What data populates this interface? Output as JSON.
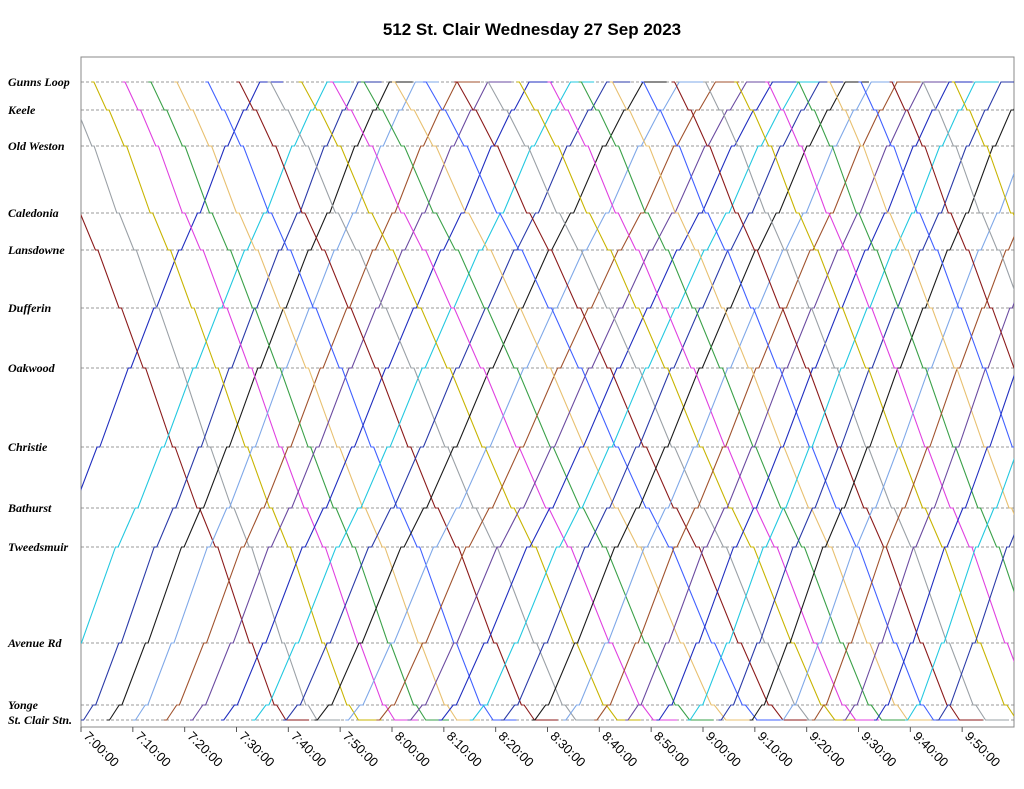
{
  "chart_data": {
    "type": "line",
    "title": "512 St. Clair Wednesday 27 Sep 2023",
    "xlabel": "",
    "ylabel": "",
    "x_ticks": [
      "7:00:00",
      "7:10:00",
      "7:20:00",
      "7:30:00",
      "7:40:00",
      "7:50:00",
      "8:00:00",
      "8:10:00",
      "8:20:00",
      "8:30:00",
      "8:40:00",
      "8:50:00",
      "9:00:00",
      "9:10:00",
      "9:20:00",
      "9:30:00",
      "9:40:00",
      "9:50:00"
    ],
    "x_range": [
      "7:00:00",
      "10:00:00"
    ],
    "stops": [
      {
        "name": "Gunns Loop"
      },
      {
        "name": "Keele"
      },
      {
        "name": "Old Weston"
      },
      {
        "name": "Caledonia"
      },
      {
        "name": "Lansdowne"
      },
      {
        "name": "Dufferin"
      },
      {
        "name": "Oakwood"
      },
      {
        "name": "Christie"
      },
      {
        "name": "Bathurst"
      },
      {
        "name": "Tweedsmuir"
      },
      {
        "name": "Avenue Rd"
      },
      {
        "name": "Yonge"
      },
      {
        "name": "St. Clair Stn."
      }
    ],
    "grid": "horizontal dashed at stops",
    "colors": [
      "#1f2dbf",
      "#8b1a1a",
      "#22c8e0",
      "#9aa0a6",
      "#2a3aa8",
      "#c8b400",
      "#1a1a1a",
      "#e040e0",
      "#7fa8e8",
      "#3aa048",
      "#a0522d",
      "#e8c070",
      "#6a4aa0",
      "#4060ff"
    ],
    "trips": [
      {
        "dir": "W",
        "start": "6:40:00",
        "duration_min": 55,
        "color_index": 0
      },
      {
        "dir": "E",
        "start": "6:48:00",
        "duration_min": 52,
        "color_index": 1
      },
      {
        "dir": "W",
        "start": "6:52:00",
        "duration_min": 56,
        "color_index": 2
      },
      {
        "dir": "E",
        "start": "6:56:00",
        "duration_min": 50,
        "color_index": 3
      },
      {
        "dir": "W",
        "start": "7:00:00",
        "duration_min": 54,
        "color_index": 4
      },
      {
        "dir": "E",
        "start": "7:02:00",
        "duration_min": 52,
        "color_index": 5
      },
      {
        "dir": "W",
        "start": "7:05:00",
        "duration_min": 55,
        "color_index": 6
      },
      {
        "dir": "E",
        "start": "7:08:00",
        "duration_min": 53,
        "color_index": 7
      },
      {
        "dir": "W",
        "start": "7:10:00",
        "duration_min": 55,
        "color_index": 8
      },
      {
        "dir": "E",
        "start": "7:13:00",
        "duration_min": 54,
        "color_index": 9
      },
      {
        "dir": "W",
        "start": "7:16:00",
        "duration_min": 57,
        "color_index": 10
      },
      {
        "dir": "E",
        "start": "7:18:00",
        "duration_min": 55,
        "color_index": 11
      },
      {
        "dir": "W",
        "start": "7:21:00",
        "duration_min": 58,
        "color_index": 12
      },
      {
        "dir": "E",
        "start": "7:24:00",
        "duration_min": 56,
        "color_index": 13
      },
      {
        "dir": "W",
        "start": "7:27:00",
        "duration_min": 60,
        "color_index": 0
      },
      {
        "dir": "E",
        "start": "7:30:00",
        "duration_min": 58,
        "color_index": 1
      },
      {
        "dir": "W",
        "start": "7:33:00",
        "duration_min": 62,
        "color_index": 2
      },
      {
        "dir": "E",
        "start": "7:36:00",
        "duration_min": 60,
        "color_index": 3
      },
      {
        "dir": "W",
        "start": "7:39:00",
        "duration_min": 63,
        "color_index": 4
      },
      {
        "dir": "E",
        "start": "7:42:00",
        "duration_min": 62,
        "color_index": 5
      },
      {
        "dir": "W",
        "start": "7:45:00",
        "duration_min": 64,
        "color_index": 6
      },
      {
        "dir": "E",
        "start": "7:48:00",
        "duration_min": 63,
        "color_index": 7
      },
      {
        "dir": "W",
        "start": "7:51:00",
        "duration_min": 65,
        "color_index": 8
      },
      {
        "dir": "E",
        "start": "7:54:00",
        "duration_min": 64,
        "color_index": 9
      },
      {
        "dir": "W",
        "start": "7:57:00",
        "duration_min": 66,
        "color_index": 10
      },
      {
        "dir": "E",
        "start": "8:00:00",
        "duration_min": 65,
        "color_index": 11
      },
      {
        "dir": "W",
        "start": "8:03:00",
        "duration_min": 66,
        "color_index": 12
      },
      {
        "dir": "E",
        "start": "8:06:00",
        "duration_min": 65,
        "color_index": 13
      },
      {
        "dir": "W",
        "start": "8:09:00",
        "duration_min": 65,
        "color_index": 0
      },
      {
        "dir": "E",
        "start": "8:12:00",
        "duration_min": 64,
        "color_index": 1
      },
      {
        "dir": "W",
        "start": "8:15:00",
        "duration_min": 64,
        "color_index": 2
      },
      {
        "dir": "E",
        "start": "8:18:00",
        "duration_min": 63,
        "color_index": 3
      },
      {
        "dir": "W",
        "start": "8:21:00",
        "duration_min": 62,
        "color_index": 4
      },
      {
        "dir": "E",
        "start": "8:24:00",
        "duration_min": 62,
        "color_index": 5
      },
      {
        "dir": "W",
        "start": "8:27:00",
        "duration_min": 61,
        "color_index": 6
      },
      {
        "dir": "E",
        "start": "8:30:00",
        "duration_min": 60,
        "color_index": 7
      },
      {
        "dir": "W",
        "start": "8:33:00",
        "duration_min": 60,
        "color_index": 8
      },
      {
        "dir": "E",
        "start": "8:36:00",
        "duration_min": 59,
        "color_index": 9
      },
      {
        "dir": "W",
        "start": "8:39:00",
        "duration_min": 59,
        "color_index": 10
      },
      {
        "dir": "E",
        "start": "8:42:00",
        "duration_min": 58,
        "color_index": 11
      },
      {
        "dir": "W",
        "start": "8:45:00",
        "duration_min": 58,
        "color_index": 12
      },
      {
        "dir": "E",
        "start": "8:48:00",
        "duration_min": 57,
        "color_index": 13
      },
      {
        "dir": "W",
        "start": "8:51:00",
        "duration_min": 57,
        "color_index": 0
      },
      {
        "dir": "E",
        "start": "8:54:00",
        "duration_min": 56,
        "color_index": 1
      },
      {
        "dir": "W",
        "start": "8:57:00",
        "duration_min": 56,
        "color_index": 2
      },
      {
        "dir": "E",
        "start": "9:00:00",
        "duration_min": 55,
        "color_index": 3
      },
      {
        "dir": "W",
        "start": "9:03:00",
        "duration_min": 55,
        "color_index": 4
      },
      {
        "dir": "E",
        "start": "9:06:00",
        "duration_min": 55,
        "color_index": 5
      },
      {
        "dir": "W",
        "start": "9:09:00",
        "duration_min": 54,
        "color_index": 6
      },
      {
        "dir": "E",
        "start": "9:12:00",
        "duration_min": 54,
        "color_index": 7
      },
      {
        "dir": "W",
        "start": "9:15:00",
        "duration_min": 54,
        "color_index": 8
      },
      {
        "dir": "E",
        "start": "9:18:00",
        "duration_min": 53,
        "color_index": 9
      },
      {
        "dir": "W",
        "start": "9:21:00",
        "duration_min": 53,
        "color_index": 10
      },
      {
        "dir": "E",
        "start": "9:24:00",
        "duration_min": 53,
        "color_index": 11
      },
      {
        "dir": "W",
        "start": "9:27:00",
        "duration_min": 52,
        "color_index": 12
      },
      {
        "dir": "E",
        "start": "9:30:00",
        "duration_min": 52,
        "color_index": 13
      },
      {
        "dir": "W",
        "start": "9:33:00",
        "duration_min": 52,
        "color_index": 0
      },
      {
        "dir": "E",
        "start": "9:36:00",
        "duration_min": 52,
        "color_index": 1
      },
      {
        "dir": "W",
        "start": "9:39:00",
        "duration_min": 52,
        "color_index": 2
      },
      {
        "dir": "E",
        "start": "9:42:00",
        "duration_min": 52,
        "color_index": 3
      },
      {
        "dir": "W",
        "start": "9:45:00",
        "duration_min": 52,
        "color_index": 4
      },
      {
        "dir": "E",
        "start": "9:48:00",
        "duration_min": 52,
        "color_index": 5
      }
    ]
  }
}
